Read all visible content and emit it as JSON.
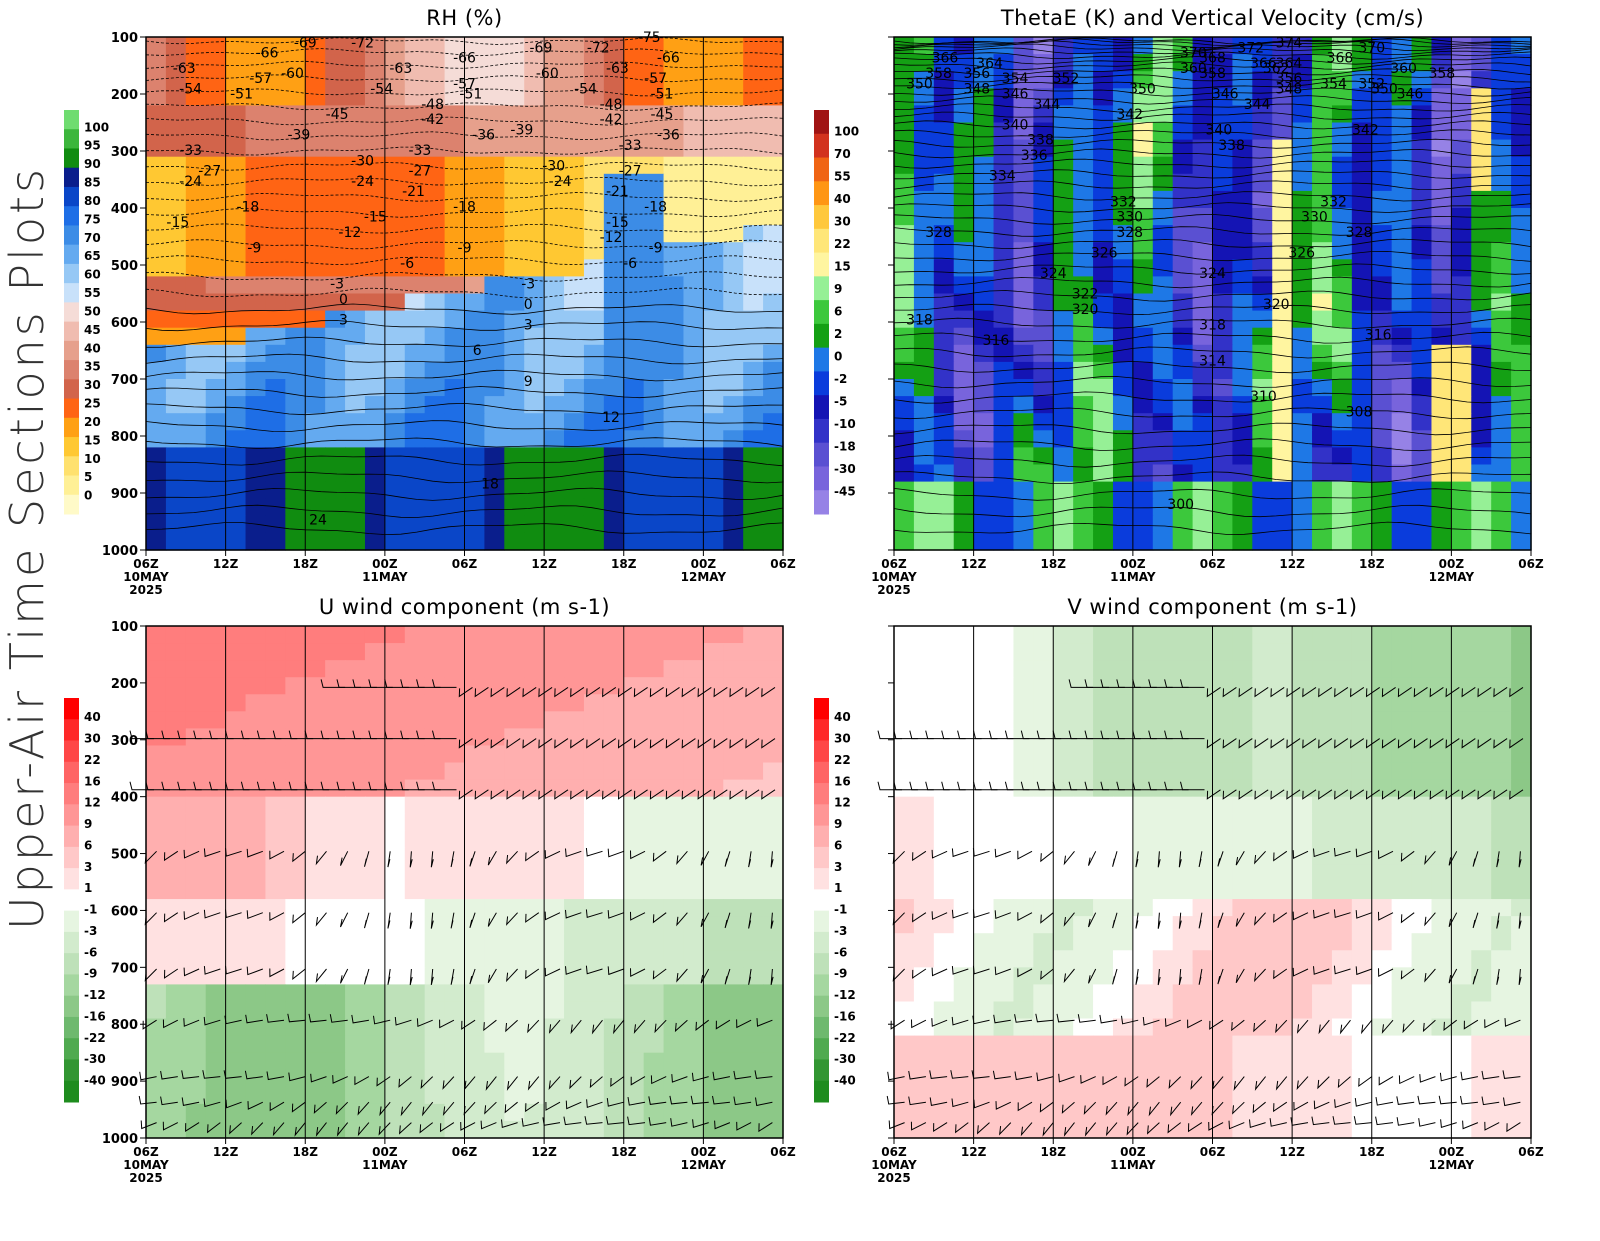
{
  "figure_title": "Upper-Air Time Sections Plots",
  "chart_data": [
    {
      "id": "rh",
      "type": "heatmap",
      "title": "RH (%)",
      "y_ticks": [
        100,
        200,
        300,
        400,
        500,
        600,
        700,
        800,
        900,
        1000
      ],
      "ylim": [
        1000,
        100
      ],
      "y_scale": "linear pressure (hPa), inverted",
      "x_ticks": [
        "06Z",
        "12Z",
        "18Z",
        "00Z",
        "06Z",
        "12Z",
        "18Z",
        "00Z",
        "06Z"
      ],
      "x_date_labels": [
        {
          "at": 0,
          "text": "10MAY"
        },
        {
          "at": 3,
          "text": "11MAY"
        },
        {
          "at": 7,
          "text": "12MAY"
        }
      ],
      "x_year_label": {
        "at": 0,
        "text": "2025"
      },
      "colorbar": {
        "labels": [
          "100",
          "95",
          "90",
          "85",
          "80",
          "75",
          "70",
          "65",
          "60",
          "55",
          "50",
          "45",
          "40",
          "35",
          "30",
          "25",
          "20",
          "15",
          "10",
          "5",
          "0"
        ],
        "colors": [
          "#6fdc70",
          "#3cb63c",
          "#108c10",
          "#0a1e8c",
          "#0a46c8",
          "#1e6ee6",
          "#3c8ce6",
          "#64aaf0",
          "#96c8f5",
          "#c8e1fa",
          "#f5dcd7",
          "#f0bcb0",
          "#e6a08c",
          "#dc826e",
          "#d2644b",
          "#ff6414",
          "#ffa014",
          "#ffc832",
          "#ffe16e",
          "#fff096",
          "#fffac8"
        ]
      },
      "contour_labels": [
        "-75",
        "-72",
        "-72",
        "-69",
        "-69",
        "-66",
        "-66",
        "-66",
        "-63",
        "-63",
        "-63",
        "-60",
        "-60",
        "-57",
        "-57",
        "-57",
        "-54",
        "-54",
        "-54",
        "-51",
        "-51",
        "-51",
        "-48",
        "-48",
        "-45",
        "-45",
        "-42",
        "-42",
        "-39",
        "-39",
        "-36",
        "-36",
        "-33",
        "-33",
        "-33",
        "-30",
        "-30",
        "-27",
        "-27",
        "-27",
        "-24",
        "-24",
        "-24",
        "-21",
        "-21",
        "-18",
        "-18",
        "-18",
        "-15",
        "-15",
        "-15",
        "-12",
        "-12",
        "-9",
        "-9",
        "-9",
        "-6",
        "-6",
        "-3",
        "-3",
        "0",
        "0",
        "3",
        "3",
        "6",
        "9",
        "12",
        "18",
        "24"
      ]
    },
    {
      "id": "thetae",
      "type": "heatmap",
      "title": "ThetaE (K) and Vertical Velocity (cm/s)",
      "y_ticks": [
        100,
        200,
        300,
        400,
        500,
        600,
        700,
        800,
        900,
        1000
      ],
      "ylim": [
        1000,
        100
      ],
      "x_ticks": [
        "06Z",
        "12Z",
        "18Z",
        "00Z",
        "06Z",
        "12Z",
        "18Z",
        "00Z",
        "06Z"
      ],
      "x_date_labels": [
        {
          "at": 0,
          "text": "10MAY"
        },
        {
          "at": 3,
          "text": "11MAY"
        },
        {
          "at": 7,
          "text": "12MAY"
        }
      ],
      "x_year_label": {
        "at": 0,
        "text": "2025"
      },
      "colorbar": {
        "labels": [
          "100",
          "70",
          "55",
          "40",
          "30",
          "22",
          "15",
          "9",
          "6",
          "2",
          "0",
          "-2",
          "-5",
          "-10",
          "-18",
          "-30",
          "-45"
        ],
        "colors": [
          "#a01414",
          "#d2321e",
          "#f06414",
          "#ff9614",
          "#ffc83c",
          "#ffe678",
          "#fff5a0",
          "#96f096",
          "#3cc83c",
          "#14a014",
          "#1e78e6",
          "#0a3cdc",
          "#1414b4",
          "#3232c8",
          "#5a50d2",
          "#7864dc",
          "#9682e6"
        ]
      },
      "contour_labels": [
        "374",
        "372",
        "370",
        "370",
        "368",
        "368",
        "366",
        "366",
        "364",
        "364",
        "362",
        "360",
        "360",
        "358",
        "358",
        "358",
        "356",
        "356",
        "354",
        "354",
        "352",
        "352",
        "350",
        "350",
        "350",
        "348",
        "348",
        "346",
        "346",
        "346",
        "344",
        "344",
        "342",
        "342",
        "340",
        "340",
        "338",
        "338",
        "336",
        "334",
        "332",
        "332",
        "330",
        "330",
        "328",
        "328",
        "328",
        "326",
        "326",
        "324",
        "324",
        "322",
        "320",
        "320",
        "318",
        "318",
        "316",
        "316",
        "314",
        "310",
        "308",
        "300"
      ]
    },
    {
      "id": "u",
      "type": "heatmap",
      "title": "U wind component (m s-1)",
      "y_ticks": [
        100,
        200,
        300,
        400,
        500,
        600,
        700,
        800,
        900,
        1000
      ],
      "ylim": [
        1000,
        100
      ],
      "x_ticks": [
        "06Z",
        "12Z",
        "18Z",
        "00Z",
        "06Z",
        "12Z",
        "18Z",
        "00Z",
        "06Z"
      ],
      "x_date_labels": [
        {
          "at": 0,
          "text": "10MAY"
        },
        {
          "at": 3,
          "text": "11MAY"
        },
        {
          "at": 7,
          "text": "12MAY"
        }
      ],
      "x_year_label": {
        "at": 0,
        "text": "2025"
      },
      "colorbar": {
        "labels": [
          "40",
          "30",
          "22",
          "16",
          "12",
          "9",
          "6",
          "3",
          "1",
          "-1",
          "-3",
          "-6",
          "-9",
          "-12",
          "-16",
          "-22",
          "-30",
          "-40"
        ],
        "colors": [
          "#ff0000",
          "#ff2828",
          "#ff4646",
          "#ff6464",
          "#ff7d7d",
          "#ff9696",
          "#ffafaf",
          "#ffc8c8",
          "#ffe1e1",
          "#ffffff",
          "#e6f5e1",
          "#d2ebcd",
          "#bee1b9",
          "#a5d7a0",
          "#8cc887",
          "#6eb96e",
          "#50aa50",
          "#329632",
          "#1e8c1e"
        ]
      }
    },
    {
      "id": "v",
      "type": "heatmap",
      "title": "V wind component (m s-1)",
      "y_ticks": [
        100,
        200,
        300,
        400,
        500,
        600,
        700,
        800,
        900,
        1000
      ],
      "ylim": [
        1000,
        100
      ],
      "x_ticks": [
        "06Z",
        "12Z",
        "18Z",
        "00Z",
        "06Z",
        "12Z",
        "18Z",
        "00Z",
        "06Z"
      ],
      "x_date_labels": [
        {
          "at": 0,
          "text": "10MAY"
        },
        {
          "at": 3,
          "text": "11MAY"
        },
        {
          "at": 7,
          "text": "12MAY"
        }
      ],
      "x_year_label": {
        "at": 0,
        "text": "2025"
      },
      "colorbar": {
        "labels": [
          "40",
          "30",
          "22",
          "16",
          "12",
          "9",
          "6",
          "3",
          "1",
          "-1",
          "-3",
          "-6",
          "-9",
          "-12",
          "-16",
          "-22",
          "-30",
          "-40"
        ],
        "colors": [
          "#ff0000",
          "#ff2828",
          "#ff4646",
          "#ff6464",
          "#ff7d7d",
          "#ff9696",
          "#ffafaf",
          "#ffc8c8",
          "#ffe1e1",
          "#ffffff",
          "#e6f5e1",
          "#d2ebcd",
          "#bee1b9",
          "#a5d7a0",
          "#8cc887",
          "#6eb96e",
          "#50aa50",
          "#329632",
          "#1e8c1e"
        ]
      }
    }
  ]
}
